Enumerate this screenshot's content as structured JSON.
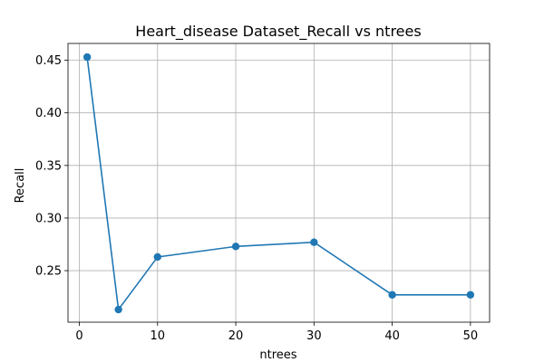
{
  "chart_data": {
    "type": "line",
    "title": "Heart_disease Dataset_Recall vs ntrees",
    "xlabel": "ntrees",
    "ylabel": "Recall",
    "x": [
      1,
      5,
      10,
      20,
      30,
      40,
      50
    ],
    "series": [
      {
        "values": [
          0.453,
          0.213,
          0.263,
          0.273,
          0.277,
          0.227,
          0.227
        ]
      }
    ],
    "xlim": [
      -1.45,
      52.45
    ],
    "ylim": [
      0.201,
      0.466
    ],
    "xticks": [
      0,
      10,
      20,
      30,
      40,
      50
    ],
    "xtick_labels": [
      "0",
      "10",
      "20",
      "30",
      "40",
      "50"
    ],
    "yticks": [
      0.25,
      0.3,
      0.35,
      0.4,
      0.45
    ],
    "ytick_labels": [
      "0.25",
      "0.30",
      "0.35",
      "0.40",
      "0.45"
    ],
    "grid": true,
    "line_color": "#1f77b4",
    "marker": "circle"
  }
}
